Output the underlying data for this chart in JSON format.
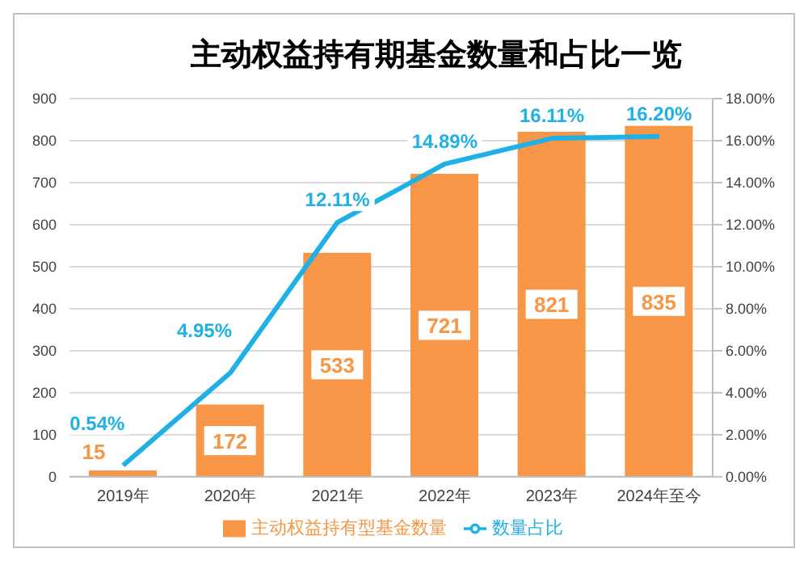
{
  "chart_data": {
    "type": "bar",
    "title": "主动权益持有期基金数量和占比一览",
    "categories": [
      "2019年",
      "2020年",
      "2021年",
      "2022年",
      "2023年",
      "2024年至今"
    ],
    "series": [
      {
        "name": "主动权益持有型基金数量",
        "color": "#f79646",
        "values": [
          15,
          172,
          533,
          721,
          821,
          835
        ],
        "value_labels": [
          "15",
          "172",
          "533",
          "721",
          "821",
          "835"
        ]
      },
      {
        "name": "数量占比",
        "type": "line",
        "color": "#1fb0e6",
        "axis": "y2",
        "values": [
          0.54,
          4.95,
          12.11,
          14.89,
          16.11,
          16.2
        ],
        "value_labels": [
          "0.54%",
          "4.95%",
          "12.11%",
          "14.89%",
          "16.11%",
          "16.20%"
        ]
      }
    ],
    "ylim": [
      0,
      900
    ],
    "yticks": [
      0,
      100,
      200,
      300,
      400,
      500,
      600,
      700,
      800,
      900
    ],
    "y2lim": [
      0,
      18
    ],
    "y2ticks": [
      {
        "value": 0,
        "label": "0.00%"
      },
      {
        "value": 2,
        "label": "2.00%"
      },
      {
        "value": 4,
        "label": "4.00%"
      },
      {
        "value": 6,
        "label": "6.00%"
      },
      {
        "value": 8,
        "label": "8.00%"
      },
      {
        "value": 10,
        "label": "10.00%"
      },
      {
        "value": 12,
        "label": "12.00%"
      },
      {
        "value": 14,
        "label": "14.00%"
      },
      {
        "value": 16,
        "label": "16.00%"
      },
      {
        "value": 18,
        "label": "18.00%"
      }
    ],
    "grid": "y",
    "legend": "bottom",
    "marker": "none",
    "line_style": "solid"
  }
}
